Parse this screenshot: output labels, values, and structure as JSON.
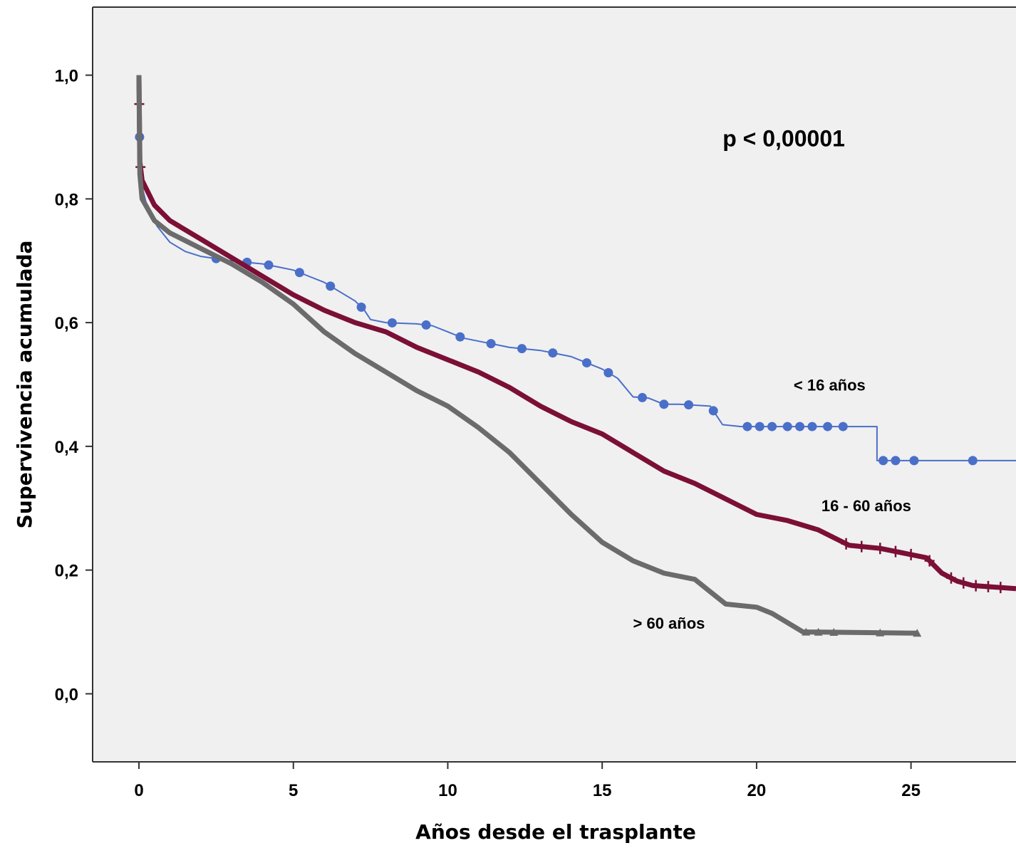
{
  "chart_data": {
    "type": "line",
    "subtype": "kaplan-meier",
    "xlabel": "Años desde el trasplante",
    "ylabel": "Supervivencia acumulada",
    "xlim": [
      -1.5,
      28.4
    ],
    "ylim": [
      -0.11,
      1.11
    ],
    "x_ticks": [
      0,
      5,
      10,
      15,
      20,
      25
    ],
    "x_tick_labels": [
      "0",
      "5",
      "10",
      "15",
      "20",
      "25"
    ],
    "y_ticks": [
      0.0,
      0.2,
      0.4,
      0.6,
      0.8,
      1.0
    ],
    "y_tick_labels": [
      "0,0",
      "0,2",
      "0,4",
      "0,6",
      "0,8",
      "1,0"
    ],
    "grid": false,
    "legend": "none",
    "annotations": [
      {
        "text": "p < 0,00001",
        "x": 18.9,
        "y": 0.885
      },
      {
        "text": "< 16 años",
        "x": 21.2,
        "y": 0.49
      },
      {
        "text": "16 - 60 años",
        "x": 22.1,
        "y": 0.295
      },
      {
        "text": "> 60 años",
        "x": 16.0,
        "y": 0.105
      }
    ],
    "series": [
      {
        "label": "< 16 años",
        "color": "#4a6fc9",
        "marker": "circle",
        "points": [
          [
            0,
            1.0
          ],
          [
            0.02,
            0.9
          ],
          [
            0.1,
            0.82
          ],
          [
            0.3,
            0.78
          ],
          [
            0.6,
            0.755
          ],
          [
            1,
            0.73
          ],
          [
            1.5,
            0.715
          ],
          [
            2,
            0.707
          ],
          [
            3,
            0.7
          ],
          [
            4,
            0.695
          ],
          [
            4.5,
            0.69
          ],
          [
            5,
            0.685
          ],
          [
            5.5,
            0.675
          ],
          [
            6,
            0.665
          ],
          [
            6.5,
            0.65
          ],
          [
            7,
            0.635
          ],
          [
            7.3,
            0.62
          ],
          [
            7.5,
            0.605
          ],
          [
            8,
            0.6
          ],
          [
            9,
            0.598
          ],
          [
            9.5,
            0.595
          ],
          [
            10,
            0.585
          ],
          [
            10.5,
            0.575
          ],
          [
            11,
            0.57
          ],
          [
            11.5,
            0.565
          ],
          [
            12,
            0.56
          ],
          [
            13,
            0.555
          ],
          [
            14,
            0.545
          ],
          [
            14.5,
            0.535
          ],
          [
            15,
            0.525
          ],
          [
            15.5,
            0.51
          ],
          [
            16,
            0.48
          ],
          [
            16.5,
            0.478
          ],
          [
            17,
            0.468
          ],
          [
            17.5,
            0.468
          ],
          [
            18.5,
            0.465
          ],
          [
            18.9,
            0.435
          ],
          [
            19.5,
            0.432
          ],
          [
            23.9,
            0.432
          ],
          [
            23.9,
            0.377
          ],
          [
            28.4,
            0.377
          ]
        ],
        "censor_x": [
          0.02,
          2.5,
          3.5,
          4.2,
          5.2,
          6.2,
          7.2,
          8.2,
          9.3,
          10.4,
          11.4,
          12.4,
          13.4,
          14.5,
          15.2,
          16.3,
          17.0,
          17.8,
          18.6,
          19.7,
          20.1,
          20.5,
          21.0,
          21.4,
          21.8,
          22.3,
          22.8,
          24.1,
          24.5,
          25.1,
          27.0
        ]
      },
      {
        "label": "16 - 60 años",
        "color": "#7b0f35",
        "marker": "plus",
        "points": [
          [
            0,
            1.0
          ],
          [
            0.03,
            0.86
          ],
          [
            0.1,
            0.83
          ],
          [
            0.5,
            0.79
          ],
          [
            1,
            0.765
          ],
          [
            2,
            0.735
          ],
          [
            3,
            0.705
          ],
          [
            4,
            0.675
          ],
          [
            5,
            0.645
          ],
          [
            6,
            0.62
          ],
          [
            7,
            0.6
          ],
          [
            8,
            0.585
          ],
          [
            9,
            0.56
          ],
          [
            10,
            0.54
          ],
          [
            11,
            0.52
          ],
          [
            12,
            0.495
          ],
          [
            13,
            0.465
          ],
          [
            14,
            0.44
          ],
          [
            15,
            0.42
          ],
          [
            16,
            0.39
          ],
          [
            17,
            0.36
          ],
          [
            18,
            0.34
          ],
          [
            19,
            0.315
          ],
          [
            20,
            0.29
          ],
          [
            21,
            0.28
          ],
          [
            22,
            0.265
          ],
          [
            23,
            0.24
          ],
          [
            24,
            0.235
          ],
          [
            25,
            0.225
          ],
          [
            25.5,
            0.22
          ],
          [
            26,
            0.195
          ],
          [
            26.5,
            0.182
          ],
          [
            27,
            0.175
          ],
          [
            28.4,
            0.17
          ]
        ],
        "censor_x": [
          0.01,
          0.05,
          22.9,
          23.4,
          24.0,
          24.5,
          25.0,
          25.6,
          26.3,
          26.7,
          27.1,
          27.5,
          27.9
        ]
      },
      {
        "label": "> 60 años",
        "color": "#6b6b6b",
        "marker": "triangle",
        "points": [
          [
            0,
            1.0
          ],
          [
            0.03,
            0.84
          ],
          [
            0.1,
            0.8
          ],
          [
            0.5,
            0.765
          ],
          [
            1,
            0.745
          ],
          [
            2,
            0.72
          ],
          [
            3,
            0.695
          ],
          [
            4,
            0.665
          ],
          [
            5,
            0.63
          ],
          [
            6,
            0.585
          ],
          [
            7,
            0.55
          ],
          [
            8,
            0.52
          ],
          [
            9,
            0.49
          ],
          [
            10,
            0.465
          ],
          [
            11,
            0.43
          ],
          [
            12,
            0.39
          ],
          [
            13,
            0.34
          ],
          [
            14,
            0.29
          ],
          [
            15,
            0.245
          ],
          [
            16,
            0.215
          ],
          [
            17,
            0.195
          ],
          [
            18,
            0.185
          ],
          [
            18.5,
            0.165
          ],
          [
            19,
            0.145
          ],
          [
            20,
            0.14
          ],
          [
            20.5,
            0.13
          ],
          [
            21,
            0.115
          ],
          [
            21.5,
            0.1
          ],
          [
            25.2,
            0.098
          ]
        ],
        "censor_x": [
          21.6,
          22.0,
          22.5,
          24.0,
          25.2
        ]
      }
    ]
  }
}
